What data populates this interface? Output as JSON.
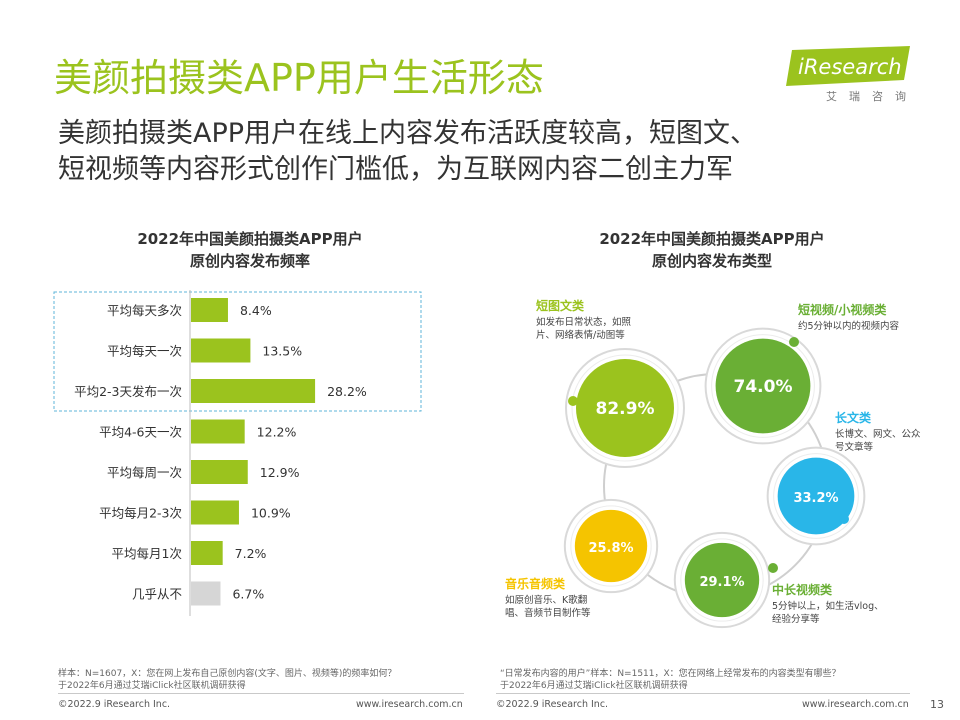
{
  "header": {
    "title": "美颜拍摄类APP用户生活形态",
    "subtitle_line1": "美颜拍摄类APP用户在线上内容发布活跃度较高，短图文、",
    "subtitle_line2": "短视频等内容形式创作门槛低，为互联网内容二创主力军"
  },
  "logo": {
    "brand": "iResearch",
    "sub": "艾瑞咨询"
  },
  "left": {
    "title_line1": "2022年中国美颜拍摄类APP用户",
    "title_line2": "原创内容发布频率",
    "note_line1": "样本：N=1607，X：您在网上发布自己原创内容(文字、图片、视频等)的频率如何？",
    "note_line2": "于2022年6月通过艾瑞iClick社区联机调研获得"
  },
  "right": {
    "title_line1": "2022年中国美颜拍摄类APP用户",
    "title_line2": "原创内容发布类型",
    "note_line1": "“日常发布内容的用户”样本：N=1511，X：您在网络上经常发布的内容类型有哪些？",
    "note_line2": "于2022年6月通过艾瑞iClick社区联机调研获得"
  },
  "footer": {
    "left_copyright": "©2022.9 iResearch Inc.",
    "left_url": "www.iresearch.com.cn",
    "right_copyright": "©2022.9 iResearch Inc.",
    "right_url": "www.iresearch.com.cn",
    "page_number": "13"
  },
  "colors": {
    "brand_green": "#9bc31e",
    "dark_green": "#6aaf35",
    "cyan": "#29b6e8",
    "yellow": "#f5c400",
    "gray_bar": "#d6d6d6",
    "dashed_box": "#5fb6d8"
  },
  "chart_data": [
    {
      "type": "bar",
      "orientation": "horizontal",
      "title": "2022年中国美颜拍摄类APP用户原创内容发布频率",
      "categories": [
        "平均每天多次",
        "平均每天一次",
        "平均2-3天发布一次",
        "平均4-6天一次",
        "平均每周一次",
        "平均每月2-3次",
        "平均每月1次",
        "几乎从不"
      ],
      "values": [
        8.4,
        13.5,
        28.2,
        12.2,
        12.9,
        10.9,
        7.2,
        6.7
      ],
      "value_labels": [
        "8.4%",
        "13.5%",
        "28.2%",
        "12.2%",
        "12.9%",
        "10.9%",
        "7.2%",
        "6.7%"
      ],
      "unit": "%",
      "highlighted": [
        0,
        1,
        2
      ],
      "bar_colors": [
        "#9bc31e",
        "#9bc31e",
        "#9bc31e",
        "#9bc31e",
        "#9bc31e",
        "#9bc31e",
        "#9bc31e",
        "#d6d6d6"
      ],
      "xlim": [
        0,
        30
      ]
    },
    {
      "type": "bubble",
      "title": "2022年中国美颜拍摄类APP用户原创内容发布类型",
      "items": [
        {
          "name": "短图文类",
          "desc_line1": "如发布日常状态，如照",
          "desc_line2": "片、网络表情/动图等",
          "value": 82.9,
          "label": "82.9%",
          "color": "#9bc31e"
        },
        {
          "name": "短视频/小视频类",
          "desc_line1": "约5分钟以内的视频内容",
          "desc_line2": "",
          "value": 74.0,
          "label": "74.0%",
          "color": "#6aaf35"
        },
        {
          "name": "长文类",
          "desc_line1": "长博文、网文、公众",
          "desc_line2": "号文章等",
          "value": 33.2,
          "label": "33.2%",
          "color": "#29b6e8"
        },
        {
          "name": "中长视频类",
          "desc_line1": "5分钟以上，如生活vlog、",
          "desc_line2": "经验分享等",
          "value": 29.1,
          "label": "29.1%",
          "color": "#6aaf35"
        },
        {
          "name": "音乐音频类",
          "desc_line1": "如原创音乐、K歌翻",
          "desc_line2": "唱、音频节目制作等",
          "value": 25.8,
          "label": "25.8%",
          "color": "#f5c400"
        }
      ]
    }
  ]
}
